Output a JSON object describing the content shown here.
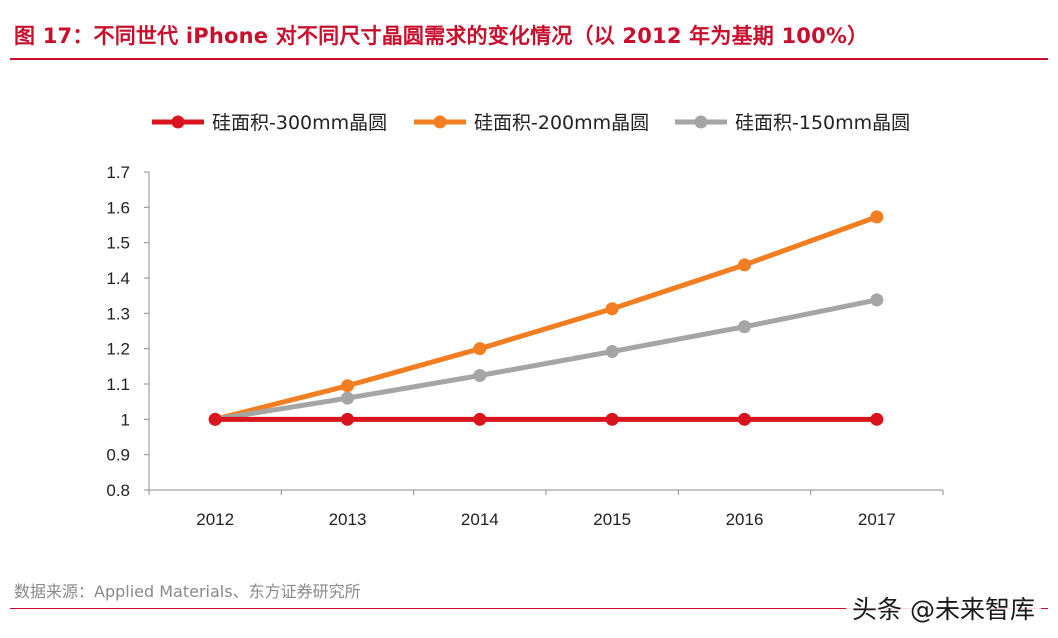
{
  "title": "图 17：不同世代 iPhone 对不同尺寸晶圆需求的变化情况（以 2012 年为基期 100%）",
  "source": "数据来源：Applied Materials、东方证券研究所",
  "watermark": "头条 @未来智库",
  "colors": {
    "accent": "#c8102e"
  },
  "chart_data": {
    "type": "line",
    "x": [
      "2012",
      "2013",
      "2014",
      "2015",
      "2016",
      "2017"
    ],
    "ylim": [
      0.8,
      1.7
    ],
    "yticks": [
      0.8,
      0.9,
      1,
      1.1,
      1.2,
      1.3,
      1.4,
      1.5,
      1.6,
      1.7
    ],
    "ytick_labels": [
      "0.8",
      "0.9",
      "1",
      "1.1",
      "1.2",
      "1.3",
      "1.4",
      "1.5",
      "1.6",
      "1.7"
    ],
    "legend_position": "top",
    "grid": false,
    "series": [
      {
        "name": "硅面积-300mm晶圆",
        "color": "#d9141e",
        "values": [
          1.0,
          1.0,
          1.0,
          1.0,
          1.0,
          1.0
        ]
      },
      {
        "name": "硅面积-200mm晶圆",
        "color": "#f27e21",
        "values": [
          1.0,
          1.095,
          1.2,
          1.313,
          1.437,
          1.573
        ]
      },
      {
        "name": "硅面积-150mm晶圆",
        "color": "#a5a5a5",
        "values": [
          1.0,
          1.06,
          1.124,
          1.192,
          1.262,
          1.338
        ]
      }
    ]
  }
}
